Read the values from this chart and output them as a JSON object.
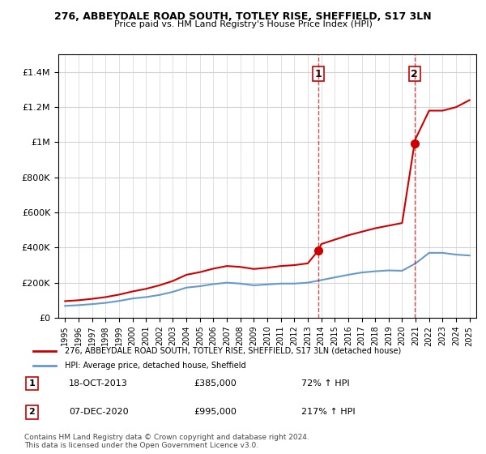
{
  "title": "276, ABBEYDALE ROAD SOUTH, TOTLEY RISE, SHEFFIELD, S17 3LN",
  "subtitle": "Price paid vs. HM Land Registry's House Price Index (HPI)",
  "legend_line1": "276, ABBEYDALE ROAD SOUTH, TOTLEY RISE, SHEFFIELD, S17 3LN (detached house)",
  "legend_line2": "HPI: Average price, detached house, Sheffield",
  "annotation1_num": "1",
  "annotation1_date": "18-OCT-2013",
  "annotation1_price": "£385,000",
  "annotation1_hpi": "72% ↑ HPI",
  "annotation2_num": "2",
  "annotation2_date": "07-DEC-2020",
  "annotation2_price": "£995,000",
  "annotation2_hpi": "217% ↑ HPI",
  "footnote": "Contains HM Land Registry data © Crown copyright and database right 2024.\nThis data is licensed under the Open Government Licence v3.0.",
  "sale1_year": 2013.8,
  "sale1_price": 385000,
  "sale2_year": 2020.92,
  "sale2_price": 995000,
  "red_color": "#cc0000",
  "blue_color": "#6699cc",
  "marker_color": "#cc0000",
  "ylim": [
    0,
    1500000
  ],
  "xlim_start": 1994.5,
  "xlim_end": 2025.5,
  "hpi_years": [
    1995,
    1996,
    1997,
    1998,
    1999,
    2000,
    2001,
    2002,
    2003,
    2004,
    2005,
    2006,
    2007,
    2008,
    2009,
    2010,
    2011,
    2012,
    2013,
    2014,
    2015,
    2016,
    2017,
    2018,
    2019,
    2020,
    2021,
    2022,
    2023,
    2024,
    2025
  ],
  "hpi_values": [
    68000,
    72000,
    78000,
    85000,
    96000,
    110000,
    118000,
    130000,
    148000,
    172000,
    180000,
    192000,
    200000,
    195000,
    185000,
    190000,
    195000,
    195000,
    200000,
    215000,
    230000,
    245000,
    258000,
    265000,
    270000,
    268000,
    310000,
    370000,
    370000,
    360000,
    355000
  ],
  "red_years": [
    1995,
    1996,
    1997,
    1998,
    1999,
    2000,
    2001,
    2002,
    2003,
    2004,
    2005,
    2006,
    2007,
    2008,
    2009,
    2010,
    2011,
    2012,
    2013,
    2013.8,
    2014,
    2015,
    2016,
    2017,
    2018,
    2019,
    2020,
    2020.92,
    2021,
    2022,
    2023,
    2024,
    2025
  ],
  "red_values": [
    95000,
    100000,
    108000,
    118000,
    132000,
    150000,
    165000,
    185000,
    210000,
    245000,
    260000,
    280000,
    295000,
    290000,
    278000,
    285000,
    295000,
    300000,
    310000,
    385000,
    420000,
    445000,
    470000,
    490000,
    510000,
    525000,
    540000,
    995000,
    1020000,
    1180000,
    1180000,
    1200000,
    1240000
  ]
}
